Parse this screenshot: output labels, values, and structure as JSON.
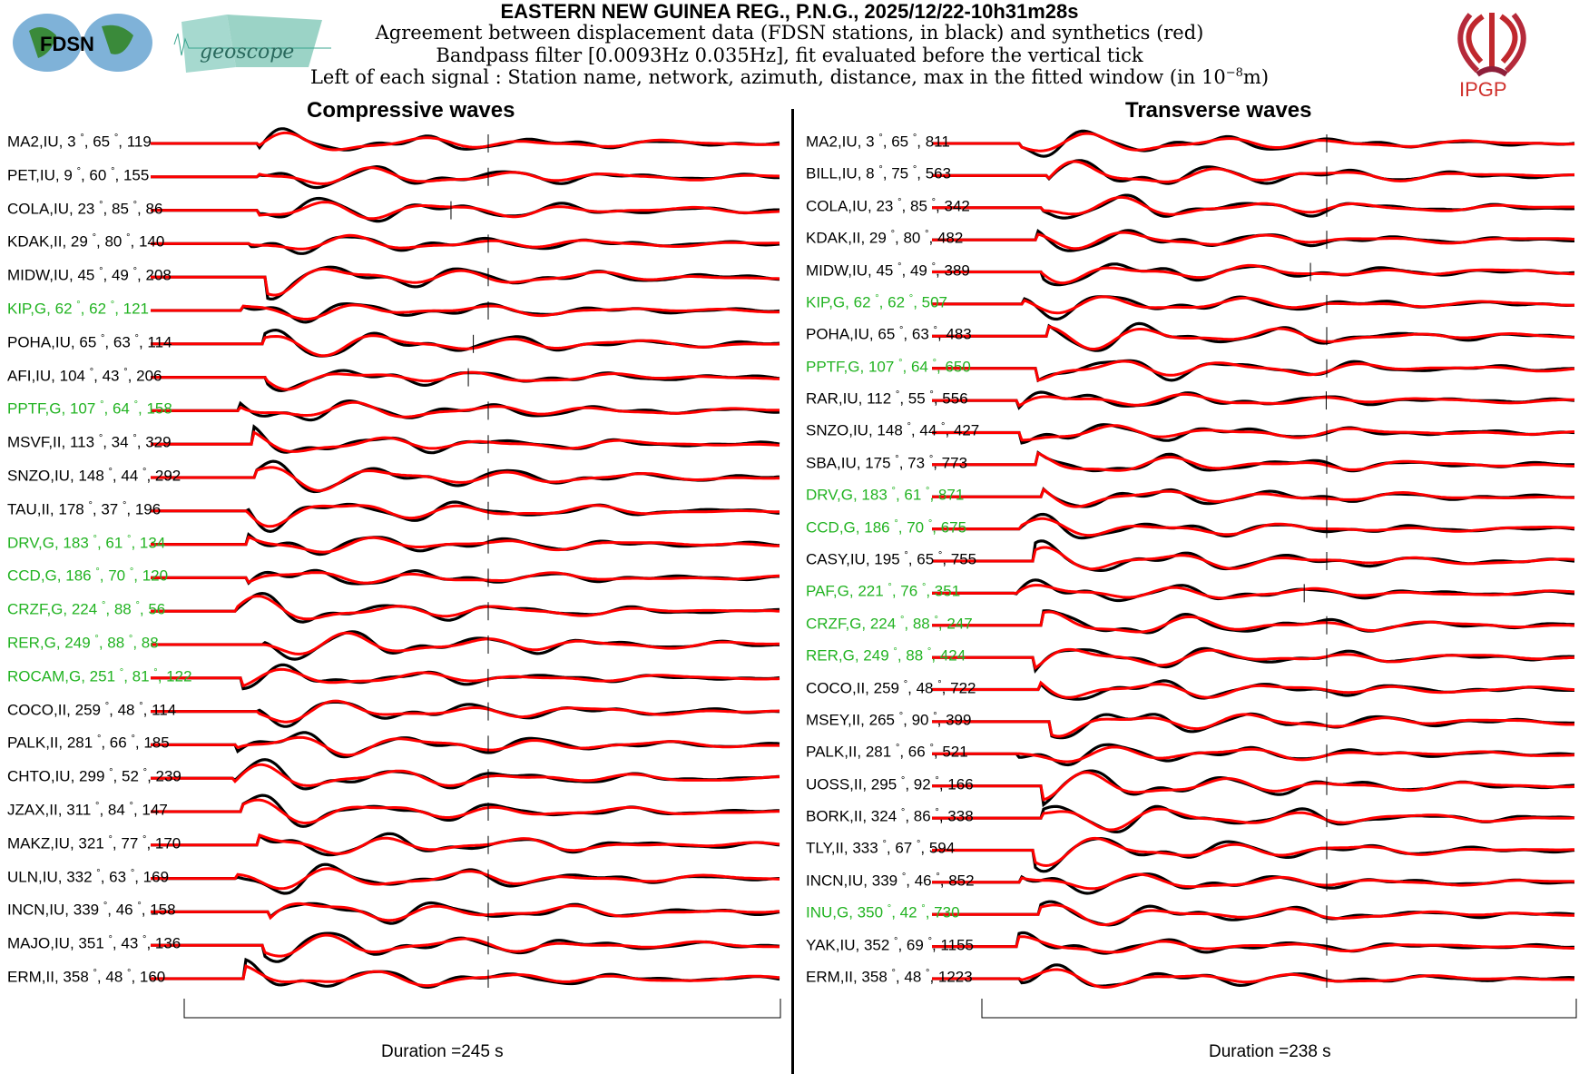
{
  "header": {
    "title": "EASTERN NEW GUINEA REG., P.N.G., 2025/12/22-10h31m28s",
    "line1": "Agreement between displacement data (FDSN stations, in black) and synthetics (red)",
    "line2": "Bandpass filter [0.0093Hz 0.035Hz], fit evaluated before the vertical tick",
    "line3_pre": "Left of each signal : Station name, network, azimuth, distance, max in the fitted window (in 10",
    "line3_exp": "−8",
    "line3_post": "m)"
  },
  "logos": {
    "fdsn": "FDSN",
    "geoscope": "geoscope",
    "ipgp": "IPGP"
  },
  "colors": {
    "data": "#000000",
    "synthetic": "#ff0000",
    "geoscope_station": "#22b322"
  },
  "chart_data": [
    {
      "type": "line",
      "title": "Compressive waves",
      "duration_label": "Duration =245 s",
      "duration_s": 245,
      "stations": [
        [
          "MA2",
          "IU",
          3,
          65,
          119,
          false
        ],
        [
          "PET",
          "IU",
          9,
          60,
          155,
          false
        ],
        [
          "COLA",
          "IU",
          23,
          85,
          86,
          false
        ],
        [
          "KDAK",
          "II",
          29,
          80,
          140,
          false
        ],
        [
          "MIDW",
          "IU",
          45,
          49,
          208,
          false
        ],
        [
          "KIP",
          "G",
          62,
          62,
          121,
          true
        ],
        [
          "POHA",
          "IU",
          65,
          63,
          114,
          false
        ],
        [
          "AFI",
          "IU",
          104,
          43,
          206,
          false
        ],
        [
          "PPTF",
          "G",
          107,
          64,
          158,
          true
        ],
        [
          "MSVF",
          "II",
          113,
          34,
          329,
          false
        ],
        [
          "SNZO",
          "IU",
          148,
          44,
          292,
          false
        ],
        [
          "TAU",
          "II",
          178,
          37,
          196,
          false
        ],
        [
          "DRV",
          "G",
          183,
          61,
          134,
          true
        ],
        [
          "CCD",
          "G",
          186,
          70,
          120,
          true
        ],
        [
          "CRZF",
          "G",
          224,
          88,
          56,
          true
        ],
        [
          "RER",
          "G",
          249,
          88,
          88,
          true
        ],
        [
          "ROCAM",
          "G",
          251,
          81,
          122,
          true
        ],
        [
          "COCO",
          "II",
          259,
          48,
          114,
          false
        ],
        [
          "PALK",
          "II",
          281,
          66,
          185,
          false
        ],
        [
          "CHTO",
          "IU",
          299,
          52,
          239,
          false
        ],
        [
          "JZAX",
          "II",
          311,
          84,
          147,
          false
        ],
        [
          "MAKZ",
          "IU",
          321,
          77,
          170,
          false
        ],
        [
          "ULN",
          "IU",
          332,
          63,
          169,
          false
        ],
        [
          "INCN",
          "IU",
          339,
          46,
          158,
          false
        ],
        [
          "MAJO",
          "IU",
          351,
          43,
          136,
          false
        ],
        [
          "ERM",
          "II",
          358,
          48,
          160,
          false
        ]
      ]
    },
    {
      "type": "line",
      "title": "Transverse waves",
      "duration_label": "Duration =238 s",
      "duration_s": 238,
      "stations": [
        [
          "MA2",
          "IU",
          3,
          65,
          811,
          false
        ],
        [
          "BILL",
          "IU",
          8,
          75,
          563,
          false
        ],
        [
          "COLA",
          "IU",
          23,
          85,
          342,
          false
        ],
        [
          "KDAK",
          "II",
          29,
          80,
          482,
          false
        ],
        [
          "MIDW",
          "IU",
          45,
          49,
          389,
          false
        ],
        [
          "KIP",
          "G",
          62,
          62,
          507,
          true
        ],
        [
          "POHA",
          "IU",
          65,
          63,
          483,
          false
        ],
        [
          "PPTF",
          "G",
          107,
          64,
          650,
          true
        ],
        [
          "RAR",
          "IU",
          112,
          55,
          556,
          false
        ],
        [
          "SNZO",
          "IU",
          148,
          44,
          427,
          false
        ],
        [
          "SBA",
          "IU",
          175,
          73,
          773,
          false
        ],
        [
          "DRV",
          "G",
          183,
          61,
          871,
          true
        ],
        [
          "CCD",
          "G",
          186,
          70,
          675,
          true
        ],
        [
          "CASY",
          "IU",
          195,
          65,
          755,
          false
        ],
        [
          "PAF",
          "G",
          221,
          76,
          351,
          true
        ],
        [
          "CRZF",
          "G",
          224,
          88,
          247,
          true
        ],
        [
          "RER",
          "G",
          249,
          88,
          424,
          true
        ],
        [
          "COCO",
          "II",
          259,
          48,
          722,
          false
        ],
        [
          "MSEY",
          "II",
          265,
          90,
          399,
          false
        ],
        [
          "PALK",
          "II",
          281,
          66,
          521,
          false
        ],
        [
          "UOSS",
          "II",
          295,
          92,
          166,
          false
        ],
        [
          "BORK",
          "II",
          324,
          86,
          338,
          false
        ],
        [
          "TLY",
          "II",
          333,
          67,
          594,
          false
        ],
        [
          "INCN",
          "IU",
          339,
          46,
          852,
          false
        ],
        [
          "INU",
          "G",
          350,
          42,
          730,
          true
        ],
        [
          "YAK",
          "IU",
          352,
          69,
          1155,
          false
        ],
        [
          "ERM",
          "II",
          358,
          48,
          1223,
          false
        ]
      ]
    }
  ]
}
